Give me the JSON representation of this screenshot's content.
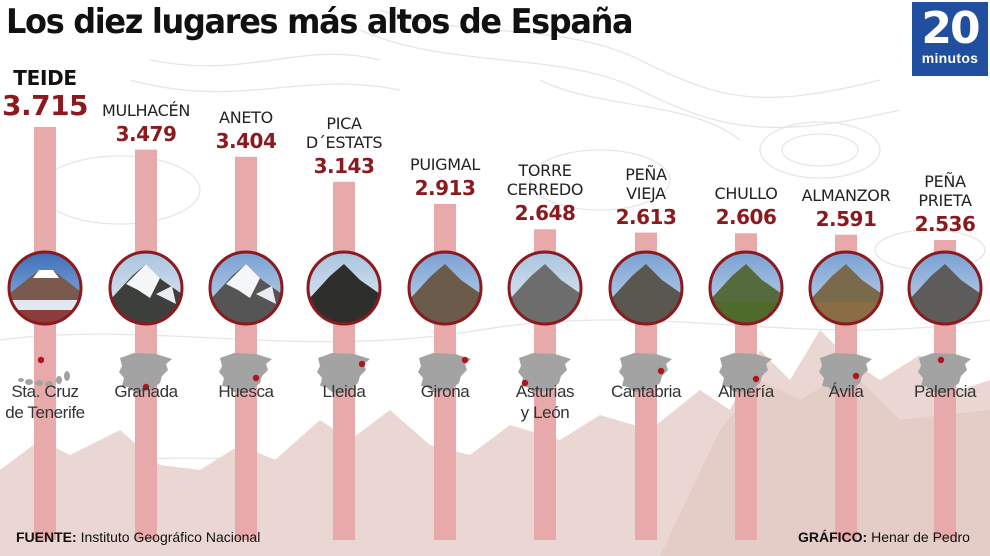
{
  "title": "Los diez lugares más altos de España",
  "logo": {
    "number": "20",
    "word": "minutos"
  },
  "colors": {
    "bar": "#e8a9ab",
    "value_text": "#8b1a1f",
    "circle_border": "#8b1a1f",
    "map_fill": "#a3a3a3",
    "highlight": "#b0151d",
    "mountain": "#ead7d3",
    "logo_bg": "#1f4f9e"
  },
  "chart_data": {
    "type": "bar",
    "title": "Los diez lugares más altos de España",
    "categories": [
      "TEIDE",
      "MULHACÉN",
      "ANETO",
      "PICA D´ESTATS",
      "PUIGMAL",
      "TORRE CERREDO",
      "PEÑA VIEJA",
      "CHULLO",
      "ALMANZOR",
      "PEÑA PRIETA"
    ],
    "values": [
      3715,
      3479,
      3404,
      3143,
      2913,
      2648,
      2613,
      2606,
      2591,
      2536
    ],
    "value_labels": [
      "3.715",
      "3.479",
      "3.404",
      "3.143",
      "2.913",
      "2.648",
      "2.613",
      "2.606",
      "2.591",
      "2.536"
    ],
    "name_lines": [
      [
        "TEIDE"
      ],
      [
        "MULHACÉN"
      ],
      [
        "ANETO"
      ],
      [
        "PICA",
        "D´ESTATS"
      ],
      [
        "PUIGMAL"
      ],
      [
        "TORRE",
        "CERREDO"
      ],
      [
        "PEÑA",
        "VIEJA"
      ],
      [
        "CHULLO"
      ],
      [
        "ALMANZOR"
      ],
      [
        "PEÑA",
        "PRIETA"
      ]
    ],
    "provinces": [
      [
        "Sta. Cruz",
        "de Tenerife"
      ],
      [
        "Granada"
      ],
      [
        "Huesca"
      ],
      [
        "Lleida"
      ],
      [
        "Girona"
      ],
      [
        "Asturias",
        "y León"
      ],
      [
        "Cantabria"
      ],
      [
        "Almería"
      ],
      [
        "Ávila"
      ],
      [
        "Palencia"
      ]
    ],
    "photo_icons": [
      "volcano-photo",
      "snowy-peak-photo",
      "snowy-peak-photo",
      "rocky-peak-photo",
      "rocky-peak-photo",
      "rocky-peak-photo",
      "rocky-peak-photo",
      "rocky-peak-photo",
      "rocky-peak-photo",
      "rocky-peak-photo"
    ],
    "xlabel": "",
    "ylabel": "",
    "grid": false,
    "legend": "none"
  },
  "footer": {
    "source_label": "FUENTE:",
    "source_value": "Instituto Geográfico Nacional",
    "graphic_label": "GRÁFICO:",
    "graphic_value": "Henar de Pedro"
  }
}
